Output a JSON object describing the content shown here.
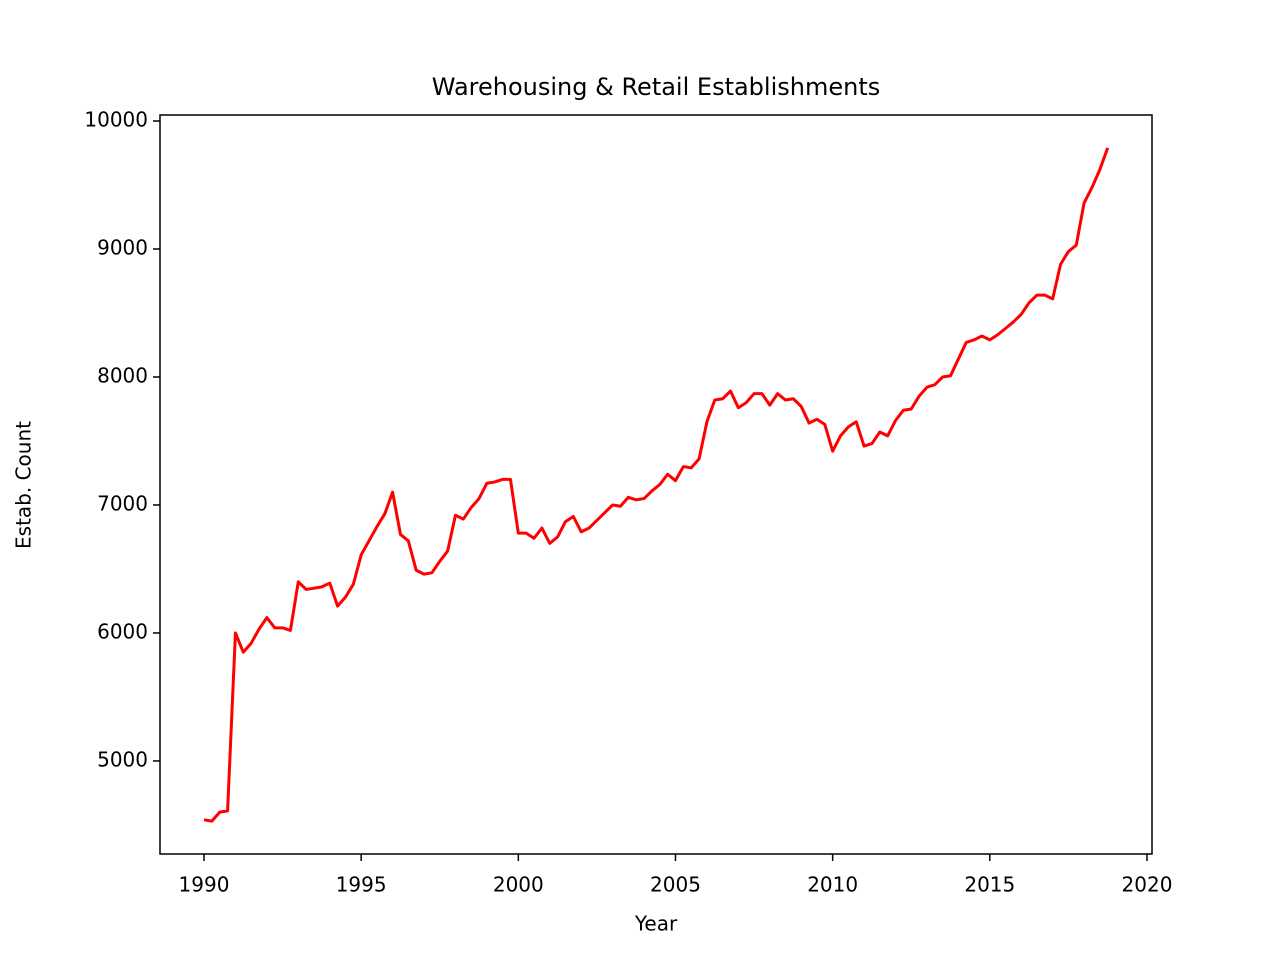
{
  "chart_data": {
    "type": "line",
    "title": "Warehousing & Retail Establishments",
    "x_label": "Year",
    "y_label": "Estab. Count",
    "x": [
      1990.0,
      1990.25,
      1990.5,
      1990.75,
      1991.0,
      1991.25,
      1991.5,
      1991.75,
      1992.0,
      1992.25,
      1992.5,
      1992.75,
      1993.0,
      1993.25,
      1993.5,
      1993.75,
      1994.0,
      1994.25,
      1994.5,
      1994.75,
      1995.0,
      1995.25,
      1995.5,
      1995.75,
      1996.0,
      1996.25,
      1996.5,
      1996.75,
      1997.0,
      1997.25,
      1997.5,
      1997.75,
      1998.0,
      1998.25,
      1998.5,
      1998.75,
      1999.0,
      1999.25,
      1999.5,
      1999.75,
      2000.0,
      2000.25,
      2000.5,
      2000.75,
      2001.0,
      2001.25,
      2001.5,
      2001.75,
      2002.0,
      2002.25,
      2002.5,
      2002.75,
      2003.0,
      2003.25,
      2003.5,
      2003.75,
      2004.0,
      2004.25,
      2004.5,
      2004.75,
      2005.0,
      2005.25,
      2005.5,
      2005.75,
      2006.0,
      2006.25,
      2006.5,
      2006.75,
      2007.0,
      2007.25,
      2007.5,
      2007.75,
      2008.0,
      2008.25,
      2008.5,
      2008.75,
      2009.0,
      2009.25,
      2009.5,
      2009.75,
      2010.0,
      2010.25,
      2010.5,
      2010.75,
      2011.0,
      2011.25,
      2011.5,
      2011.75,
      2012.0,
      2012.25,
      2012.5,
      2012.75,
      2013.0,
      2013.25,
      2013.5,
      2013.75,
      2014.0,
      2014.25,
      2014.5,
      2014.75,
      2015.0,
      2015.25,
      2015.5,
      2015.75,
      2016.0,
      2016.25,
      2016.5,
      2016.75,
      2017.0,
      2017.25,
      2017.5,
      2017.75,
      2018.0,
      2018.25,
      2018.5,
      2018.75
    ],
    "series": [
      {
        "name": "Estab. Count",
        "color": "#ff0000",
        "values": [
          4540,
          4530,
          4600,
          4610,
          6000,
          5850,
          5920,
          6030,
          6120,
          6040,
          6040,
          6020,
          6400,
          6340,
          6350,
          6360,
          6390,
          6210,
          6280,
          6380,
          6610,
          6720,
          6830,
          6930,
          7100,
          6770,
          6720,
          6490,
          6460,
          6470,
          6560,
          6640,
          6920,
          6890,
          6980,
          7050,
          7170,
          7180,
          7200,
          7200,
          6780,
          6780,
          6740,
          6820,
          6700,
          6750,
          6870,
          6910,
          6790,
          6820,
          6880,
          6940,
          7000,
          6990,
          7060,
          7040,
          7050,
          7110,
          7160,
          7240,
          7190,
          7300,
          7290,
          7360,
          7650,
          7820,
          7830,
          7890,
          7760,
          7800,
          7870,
          7870,
          7780,
          7870,
          7820,
          7830,
          7770,
          7640,
          7670,
          7630,
          7420,
          7540,
          7610,
          7650,
          7460,
          7480,
          7570,
          7540,
          7660,
          7740,
          7750,
          7850,
          7920,
          7940,
          8000,
          8010,
          8140,
          8270,
          8290,
          8320,
          8290,
          8330,
          8380,
          8430,
          8490,
          8580,
          8640,
          8640,
          8610,
          8880,
          8980,
          9030,
          9360,
          9480,
          9620,
          9790
        ]
      }
    ],
    "xlim": [
      1988.6,
      2020.16
    ],
    "ylim": [
      4273,
      10047
    ],
    "xticks": [
      1990,
      1995,
      2000,
      2005,
      2010,
      2015,
      2020
    ],
    "yticks": [
      5000,
      6000,
      7000,
      8000,
      9000,
      10000
    ],
    "grid": false
  }
}
